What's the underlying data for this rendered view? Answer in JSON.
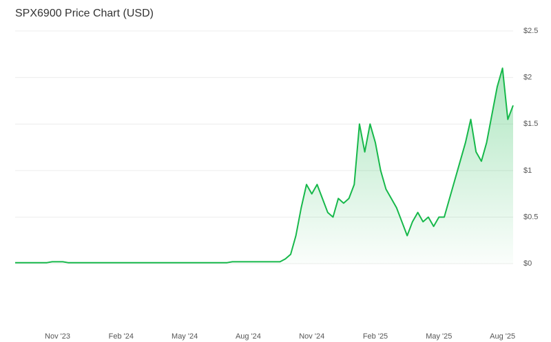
{
  "chart_data": {
    "type": "line",
    "title": "SPX6900 Price Chart (USD)",
    "categories": [
      null,
      null,
      null,
      null,
      null,
      null,
      null,
      null,
      "Nov '23",
      null,
      null,
      null,
      null,
      null,
      null,
      null,
      null,
      null,
      null,
      null,
      "Feb '24",
      null,
      null,
      null,
      null,
      null,
      null,
      null,
      null,
      null,
      null,
      null,
      "May '24",
      null,
      null,
      null,
      null,
      null,
      null,
      null,
      null,
      null,
      null,
      null,
      "Aug '24",
      null,
      null,
      null,
      null,
      null,
      null,
      null,
      null,
      null,
      null,
      null,
      "Nov '24",
      null,
      null,
      null,
      null,
      null,
      null,
      null,
      null,
      null,
      null,
      null,
      "Feb '25",
      null,
      null,
      null,
      null,
      null,
      null,
      null,
      null,
      null,
      null,
      null,
      "May '25",
      null,
      null,
      null,
      null,
      null,
      null,
      null,
      null,
      null,
      null,
      null,
      "Aug '25",
      null,
      null
    ],
    "series": [
      {
        "name": "SPX6900",
        "color": "#16b84a",
        "values": [
          0.01,
          0.01,
          0.01,
          0.01,
          0.01,
          0.01,
          0.01,
          0.02,
          0.02,
          0.02,
          0.01,
          0.01,
          0.01,
          0.01,
          0.01,
          0.01,
          0.01,
          0.01,
          0.01,
          0.01,
          0.01,
          0.01,
          0.01,
          0.01,
          0.01,
          0.01,
          0.01,
          0.01,
          0.01,
          0.01,
          0.01,
          0.01,
          0.01,
          0.01,
          0.01,
          0.01,
          0.01,
          0.01,
          0.01,
          0.01,
          0.01,
          0.02,
          0.02,
          0.02,
          0.02,
          0.02,
          0.02,
          0.02,
          0.02,
          0.02,
          0.02,
          0.05,
          0.1,
          0.3,
          0.6,
          0.85,
          0.75,
          0.85,
          0.7,
          0.55,
          0.5,
          0.7,
          0.65,
          0.7,
          0.85,
          1.5,
          1.2,
          1.5,
          1.3,
          1.0,
          0.8,
          0.7,
          0.6,
          0.45,
          0.3,
          0.45,
          0.55,
          0.45,
          0.5,
          0.4,
          0.5,
          0.5,
          0.7,
          0.9,
          1.1,
          1.3,
          1.55,
          1.2,
          1.1,
          1.3,
          1.6,
          1.9,
          2.1,
          1.55,
          1.7
        ]
      }
    ],
    "ylim": [
      -0.65,
      2.5
    ],
    "yticks": [
      {
        "value": 0,
        "label": "$0"
      },
      {
        "value": 0.5,
        "label": "$0.5"
      },
      {
        "value": 1,
        "label": "$1"
      },
      {
        "value": 1.5,
        "label": "$1.5"
      },
      {
        "value": 2,
        "label": "$2"
      },
      {
        "value": 2.5,
        "label": "$2.5"
      }
    ],
    "grid": true
  }
}
